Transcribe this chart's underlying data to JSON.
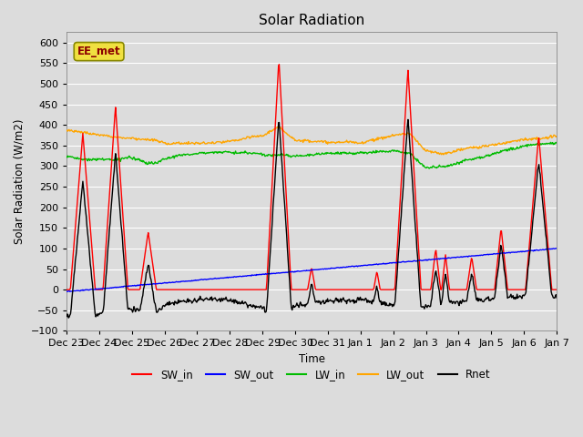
{
  "title": "Solar Radiation",
  "ylabel": "Solar Radiation (W/m2)",
  "xlabel": "Time",
  "ylim": [
    -100,
    625
  ],
  "yticks": [
    -100,
    -50,
    0,
    50,
    100,
    150,
    200,
    250,
    300,
    350,
    400,
    450,
    500,
    550,
    600
  ],
  "xtick_labels": [
    "Dec 23",
    "Dec 24",
    "Dec 25",
    "Dec 26",
    "Dec 27",
    "Dec 28",
    "Dec 29",
    "Dec 30",
    "Dec 31",
    "Jan 1",
    "Jan 2",
    "Jan 3",
    "Jan 4",
    "Jan 5",
    "Jan 6",
    "Jan 7"
  ],
  "colors": {
    "SW_in": "#ff0000",
    "SW_out": "#0000ff",
    "LW_in": "#00bb00",
    "LW_out": "#ffa500",
    "Rnet": "#000000"
  },
  "legend_label": "EE_met",
  "fig_bg": "#dcdcdc",
  "plot_bg": "#dcdcdc",
  "grid_color": "#ffffff"
}
